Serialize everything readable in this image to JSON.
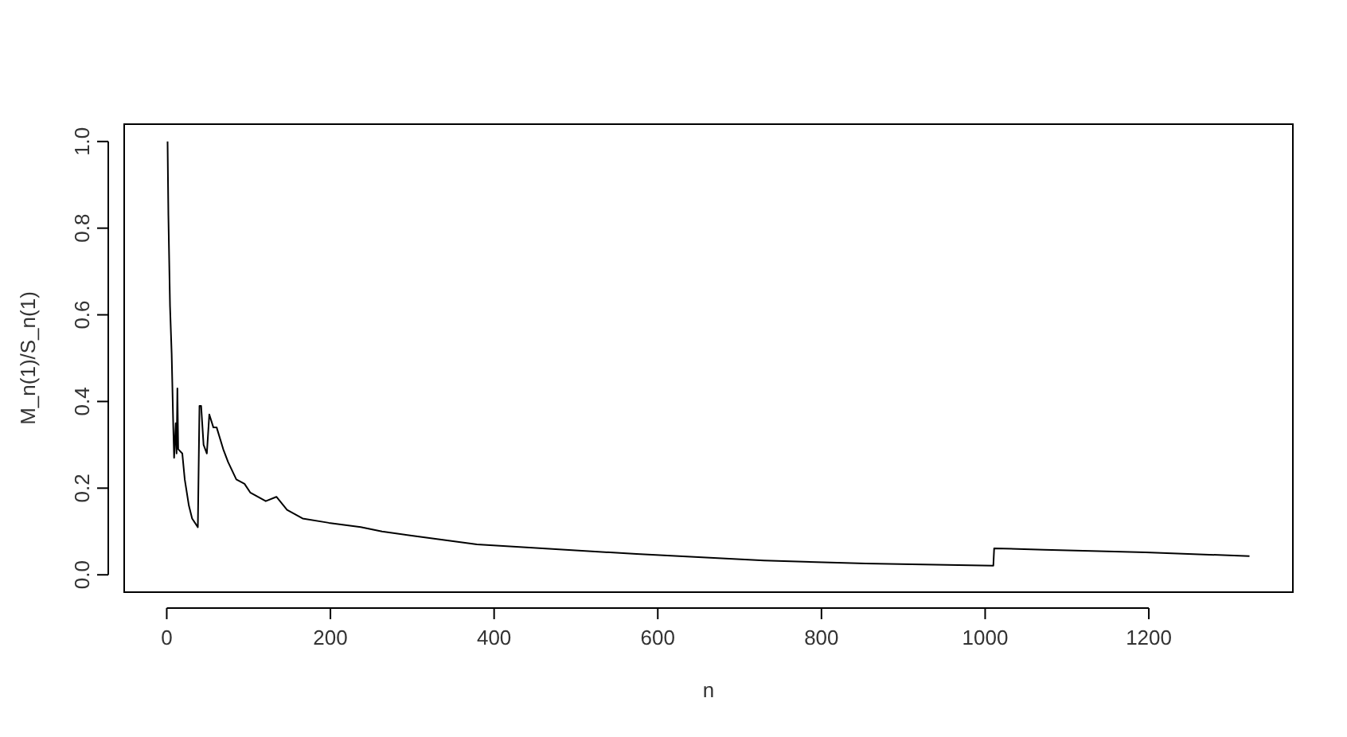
{
  "chart_data": {
    "type": "line",
    "xlabel": "n",
    "ylabel": "M_n(1)/S_n(1)",
    "xlim": [
      -52,
      1376
    ],
    "ylim": [
      -0.04,
      1.04
    ],
    "xticks": [
      0,
      200,
      400,
      600,
      800,
      1000,
      1200
    ],
    "yticks": [
      {
        "value": 0,
        "label": "0.0"
      },
      0.2,
      0.4,
      0.6,
      0.8,
      {
        "value": 1,
        "label": "1.0"
      }
    ],
    "grid": false,
    "series": [
      {
        "color": "#000000",
        "x": [
          1,
          2,
          4,
          6,
          8,
          9,
          11,
          12,
          13,
          14,
          19,
          22,
          27,
          31,
          38,
          40,
          42,
          45,
          49,
          52,
          57,
          61,
          69,
          75,
          85,
          95,
          102,
          121,
          134,
          147,
          166,
          198,
          237,
          263,
          301,
          379,
          574,
          730,
          854,
          1010,
          1011,
          1072,
          1196,
          1323
        ],
        "values": [
          1.0,
          0.83,
          0.62,
          0.51,
          0.34,
          0.27,
          0.35,
          0.28,
          0.43,
          0.29,
          0.28,
          0.22,
          0.16,
          0.13,
          0.11,
          0.39,
          0.39,
          0.3,
          0.28,
          0.37,
          0.34,
          0.34,
          0.29,
          0.26,
          0.22,
          0.21,
          0.19,
          0.17,
          0.18,
          0.15,
          0.13,
          0.12,
          0.11,
          0.1,
          0.09,
          0.07,
          0.048,
          0.033,
          0.026,
          0.021,
          0.061,
          0.058,
          0.052,
          0.043
        ]
      }
    ]
  }
}
